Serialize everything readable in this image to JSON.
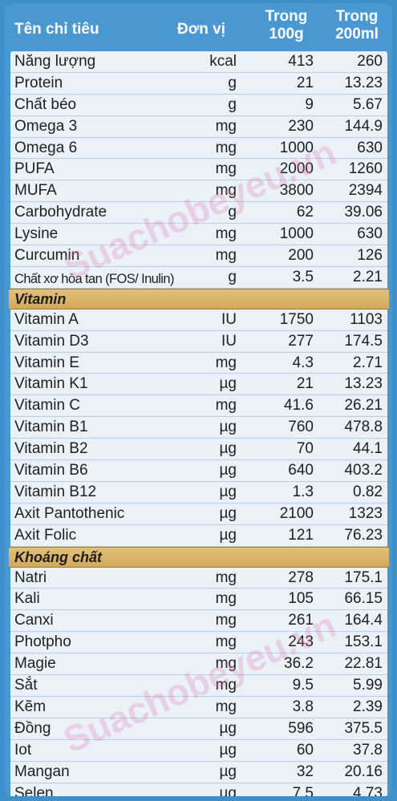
{
  "header": {
    "name": "Tên chỉ tiêu",
    "unit": "Đơn vị",
    "col100_line1": "Trong",
    "col100_line2": "100g",
    "col200_line1": "Trong",
    "col200_line2": "200ml"
  },
  "rows_main": [
    {
      "name": "Năng lượng",
      "unit": "kcal",
      "v100": "413",
      "v200": "260"
    },
    {
      "name": "Protein",
      "unit": "g",
      "v100": "21",
      "v200": "13.23"
    },
    {
      "name": "Chất béo",
      "unit": "g",
      "v100": "9",
      "v200": "5.67"
    },
    {
      "name": "Omega 3",
      "unit": "mg",
      "v100": "230",
      "v200": "144.9"
    },
    {
      "name": "Omega 6",
      "unit": "mg",
      "v100": "1000",
      "v200": "630"
    },
    {
      "name": "PUFA",
      "unit": "mg",
      "v100": "2000",
      "v200": "1260"
    },
    {
      "name": "MUFA",
      "unit": "mg",
      "v100": "3800",
      "v200": "2394"
    },
    {
      "name": "Carbohydrate",
      "unit": "g",
      "v100": "62",
      "v200": "39.06"
    },
    {
      "name": "Lysine",
      "unit": "mg",
      "v100": "1000",
      "v200": "630"
    },
    {
      "name": "Curcumin",
      "unit": "mg",
      "v100": "200",
      "v200": "126"
    },
    {
      "name": "Chất xơ hòa tan (FOS/ Inulin)",
      "unit": "g",
      "v100": "3.5",
      "v200": "2.21"
    }
  ],
  "section_vitamin": "Vitamin",
  "rows_vitamin": [
    {
      "name": "Vitamin A",
      "unit": "IU",
      "v100": "1750",
      "v200": "1103"
    },
    {
      "name": "Vitamin D3",
      "unit": "IU",
      "v100": "277",
      "v200": "174.5"
    },
    {
      "name": "Vitamin E",
      "unit": "mg",
      "v100": "4.3",
      "v200": "2.71"
    },
    {
      "name": "Vitamin K1",
      "unit": "µg",
      "v100": "21",
      "v200": "13.23"
    },
    {
      "name": "Vitamin C",
      "unit": "mg",
      "v100": "41.6",
      "v200": "26.21"
    },
    {
      "name": "Vitamin B1",
      "unit": "µg",
      "v100": "760",
      "v200": "478.8"
    },
    {
      "name": "Vitamin B2",
      "unit": "µg",
      "v100": "70",
      "v200": "44.1"
    },
    {
      "name": "Vitamin B6",
      "unit": "µg",
      "v100": "640",
      "v200": "403.2"
    },
    {
      "name": "Vitamin B12",
      "unit": "µg",
      "v100": "1.3",
      "v200": "0.82"
    },
    {
      "name": "Axit Pantothenic",
      "unit": "µg",
      "v100": "2100",
      "v200": "1323"
    },
    {
      "name": "Axit Folic",
      "unit": "µg",
      "v100": "121",
      "v200": "76.23"
    }
  ],
  "section_mineral": "Khoáng chất",
  "rows_mineral": [
    {
      "name": "Natri",
      "unit": "mg",
      "v100": "278",
      "v200": "175.1"
    },
    {
      "name": "Kali",
      "unit": "mg",
      "v100": "105",
      "v200": "66.15"
    },
    {
      "name": "Canxi",
      "unit": "mg",
      "v100": "261",
      "v200": "164.4"
    },
    {
      "name": "Photpho",
      "unit": "mg",
      "v100": "243",
      "v200": "153.1"
    },
    {
      "name": "Magie",
      "unit": "mg",
      "v100": "36.2",
      "v200": "22.81"
    },
    {
      "name": "Sắt",
      "unit": "mg",
      "v100": "9.5",
      "v200": "5.99"
    },
    {
      "name": "Kẽm",
      "unit": "mg",
      "v100": "3.8",
      "v200": "2.39"
    },
    {
      "name": "Đồng",
      "unit": "µg",
      "v100": "596",
      "v200": "375.5"
    },
    {
      "name": "Iot",
      "unit": "µg",
      "v100": "60",
      "v200": "37.8"
    },
    {
      "name": "Mangan",
      "unit": "µg",
      "v100": "32",
      "v200": "20.16"
    },
    {
      "name": "Selen",
      "unit": "µg",
      "v100": "7.5",
      "v200": "4.73"
    }
  ],
  "watermark": "Suachobeyeu.vn",
  "colors": {
    "header_blue": "#4a98d2",
    "row_bg": "#eaf2f7",
    "section_gold": "#d8b066"
  }
}
